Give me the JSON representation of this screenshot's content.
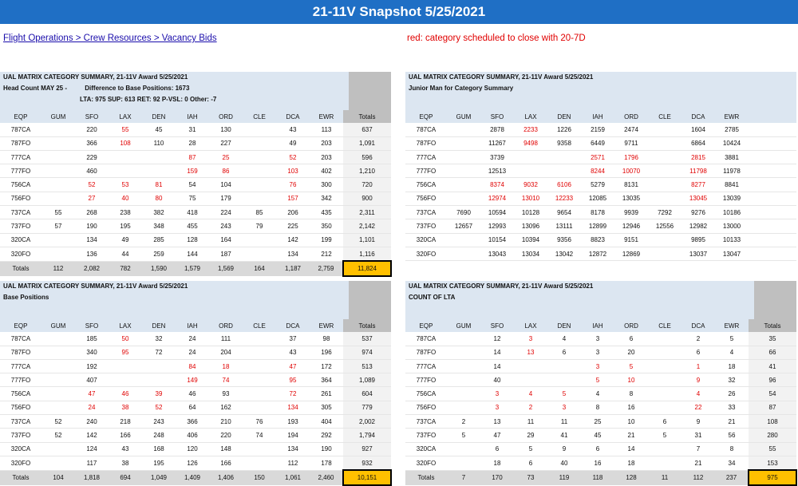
{
  "title": "21-11V Snapshot 5/25/2021",
  "breadcrumb": "Flight Operations > Crew Resources > Vacancy Bids",
  "note": "red: category scheduled to close with 20-7D",
  "colors": {
    "banner": "#1f6fc5",
    "red": "#e00000",
    "header_bg": "#dce6f1",
    "grand_total": "#ffc000"
  },
  "columns": [
    "EQP",
    "GUM",
    "SFO",
    "LAX",
    "DEN",
    "IAH",
    "ORD",
    "CLE",
    "DCA",
    "EWR",
    "Totals"
  ],
  "panels": {
    "headcount": {
      "title": "UAL MATRIX CATEGORY SUMMARY, 21-11V Award 5/25/2021",
      "subtitle": "Head Count MAY 25 -",
      "diff": "Difference to Base Positions: 1673",
      "stats": "LTA: 975  SUP: 613  RET: 92  P-VSL: 0 Other: -7",
      "rows": [
        {
          "eqp": "787CA",
          "cells": [
            "",
            "220",
            "55",
            "45",
            "31",
            "130",
            "",
            "43",
            "113"
          ],
          "red": [
            2
          ],
          "total": "637"
        },
        {
          "eqp": "787FO",
          "cells": [
            "",
            "366",
            "108",
            "110",
            "28",
            "227",
            "",
            "49",
            "203"
          ],
          "red": [
            2
          ],
          "total": "1,091"
        },
        {
          "eqp": "777CA",
          "cells": [
            "",
            "229",
            "",
            "",
            "87",
            "25",
            "",
            "52",
            "203"
          ],
          "red": [
            4,
            5,
            7
          ],
          "total": "596"
        },
        {
          "eqp": "777FO",
          "cells": [
            "",
            "460",
            "",
            "",
            "159",
            "86",
            "",
            "103",
            "402"
          ],
          "red": [
            4,
            5,
            7
          ],
          "total": "1,210"
        },
        {
          "eqp": "756CA",
          "cells": [
            "",
            "52",
            "53",
            "81",
            "54",
            "104",
            "",
            "76",
            "300"
          ],
          "red": [
            1,
            2,
            3,
            7
          ],
          "total": "720"
        },
        {
          "eqp": "756FO",
          "cells": [
            "",
            "27",
            "40",
            "80",
            "75",
            "179",
            "",
            "157",
            "342"
          ],
          "red": [
            1,
            2,
            3,
            7
          ],
          "total": "900"
        },
        {
          "eqp": "737CA",
          "cells": [
            "55",
            "268",
            "238",
            "382",
            "418",
            "224",
            "85",
            "206",
            "435"
          ],
          "red": [],
          "total": "2,311"
        },
        {
          "eqp": "737FO",
          "cells": [
            "57",
            "190",
            "195",
            "348",
            "455",
            "243",
            "79",
            "225",
            "350"
          ],
          "red": [],
          "total": "2,142"
        },
        {
          "eqp": "320CA",
          "cells": [
            "",
            "134",
            "49",
            "285",
            "128",
            "164",
            "",
            "142",
            "199"
          ],
          "red": [],
          "total": "1,101"
        },
        {
          "eqp": "320FO",
          "cells": [
            "",
            "136",
            "44",
            "259",
            "144",
            "187",
            "",
            "134",
            "212"
          ],
          "red": [],
          "total": "1,116"
        }
      ],
      "totals": {
        "label": "Totals",
        "cells": [
          "112",
          "2,082",
          "782",
          "1,590",
          "1,579",
          "1,569",
          "164",
          "1,187",
          "2,759"
        ],
        "grand": "11,824"
      }
    },
    "junior": {
      "title": "UAL MATRIX CATEGORY SUMMARY, 21-11V Award 5/25/2021",
      "subtitle": "Junior Man for Category Summary",
      "rows": [
        {
          "eqp": "787CA",
          "cells": [
            "",
            "2878",
            "2233",
            "1226",
            "2159",
            "2474",
            "",
            "1604",
            "2785"
          ],
          "red": [
            2
          ]
        },
        {
          "eqp": "787FO",
          "cells": [
            "",
            "11267",
            "9498",
            "9358",
            "6449",
            "9711",
            "",
            "6864",
            "10424"
          ],
          "red": [
            2
          ]
        },
        {
          "eqp": "777CA",
          "cells": [
            "",
            "3739",
            "",
            "",
            "2571",
            "1796",
            "",
            "2815",
            "3881"
          ],
          "red": [
            4,
            5,
            7
          ]
        },
        {
          "eqp": "777FO",
          "cells": [
            "",
            "12513",
            "",
            "",
            "8244",
            "10070",
            "",
            "11798",
            "11978"
          ],
          "red": [
            4,
            5,
            7
          ]
        },
        {
          "eqp": "756CA",
          "cells": [
            "",
            "8374",
            "9032",
            "6106",
            "5279",
            "8131",
            "",
            "8277",
            "8841"
          ],
          "red": [
            1,
            2,
            3,
            7
          ]
        },
        {
          "eqp": "756FO",
          "cells": [
            "",
            "12974",
            "13010",
            "12233",
            "12085",
            "13035",
            "",
            "13045",
            "13039"
          ],
          "red": [
            1,
            2,
            3,
            7
          ]
        },
        {
          "eqp": "737CA",
          "cells": [
            "7690",
            "10594",
            "10128",
            "9654",
            "8178",
            "9939",
            "7292",
            "9276",
            "10186"
          ],
          "red": []
        },
        {
          "eqp": "737FO",
          "cells": [
            "12657",
            "12993",
            "13096",
            "13111",
            "12899",
            "12946",
            "12556",
            "12982",
            "13000"
          ],
          "red": []
        },
        {
          "eqp": "320CA",
          "cells": [
            "",
            "10154",
            "10394",
            "9356",
            "8823",
            "9151",
            "",
            "9895",
            "10133"
          ],
          "red": []
        },
        {
          "eqp": "320FO",
          "cells": [
            "",
            "13043",
            "13034",
            "13042",
            "12872",
            "12869",
            "",
            "13037",
            "13047"
          ],
          "red": []
        }
      ]
    },
    "base": {
      "title": "UAL MATRIX CATEGORY SUMMARY, 21-11V Award 5/25/2021",
      "subtitle": "Base Positions",
      "rows": [
        {
          "eqp": "787CA",
          "cells": [
            "",
            "185",
            "50",
            "32",
            "24",
            "111",
            "",
            "37",
            "98"
          ],
          "red": [
            2
          ],
          "total": "537"
        },
        {
          "eqp": "787FO",
          "cells": [
            "",
            "340",
            "95",
            "72",
            "24",
            "204",
            "",
            "43",
            "196"
          ],
          "red": [
            2
          ],
          "total": "974"
        },
        {
          "eqp": "777CA",
          "cells": [
            "",
            "192",
            "",
            "",
            "84",
            "18",
            "",
            "47",
            "172"
          ],
          "red": [
            4,
            5,
            7
          ],
          "total": "513"
        },
        {
          "eqp": "777FO",
          "cells": [
            "",
            "407",
            "",
            "",
            "149",
            "74",
            "",
            "95",
            "364"
          ],
          "red": [
            4,
            5,
            7
          ],
          "total": "1,089"
        },
        {
          "eqp": "756CA",
          "cells": [
            "",
            "47",
            "46",
            "39",
            "46",
            "93",
            "",
            "72",
            "261"
          ],
          "red": [
            1,
            2,
            3,
            7
          ],
          "total": "604"
        },
        {
          "eqp": "756FO",
          "cells": [
            "",
            "24",
            "38",
            "52",
            "64",
            "162",
            "",
            "134",
            "305"
          ],
          "red": [
            1,
            2,
            3,
            7
          ],
          "total": "779"
        },
        {
          "eqp": "737CA",
          "cells": [
            "52",
            "240",
            "218",
            "243",
            "366",
            "210",
            "76",
            "193",
            "404"
          ],
          "red": [],
          "total": "2,002"
        },
        {
          "eqp": "737FO",
          "cells": [
            "52",
            "142",
            "166",
            "248",
            "406",
            "220",
            "74",
            "194",
            "292"
          ],
          "red": [],
          "total": "1,794"
        },
        {
          "eqp": "320CA",
          "cells": [
            "",
            "124",
            "43",
            "168",
            "120",
            "148",
            "",
            "134",
            "190"
          ],
          "red": [],
          "total": "927"
        },
        {
          "eqp": "320FO",
          "cells": [
            "",
            "117",
            "38",
            "195",
            "126",
            "166",
            "",
            "112",
            "178"
          ],
          "red": [],
          "total": "932"
        }
      ],
      "totals": {
        "label": "Totals",
        "cells": [
          "104",
          "1,818",
          "694",
          "1,049",
          "1,409",
          "1,406",
          "150",
          "1,061",
          "2,460"
        ],
        "grand": "10,151"
      }
    },
    "lta": {
      "title": "UAL MATRIX CATEGORY SUMMARY, 21-11V Award 5/25/2021",
      "subtitle": "COUNT OF LTA",
      "rows": [
        {
          "eqp": "787CA",
          "cells": [
            "",
            "12",
            "3",
            "4",
            "3",
            "6",
            "",
            "2",
            "5"
          ],
          "red": [
            2
          ],
          "total": "35"
        },
        {
          "eqp": "787FO",
          "cells": [
            "",
            "14",
            "13",
            "6",
            "3",
            "20",
            "",
            "6",
            "4"
          ],
          "red": [
            2
          ],
          "total": "66"
        },
        {
          "eqp": "777CA",
          "cells": [
            "",
            "14",
            "",
            "",
            "3",
            "5",
            "",
            "1",
            "18"
          ],
          "red": [
            4,
            5,
            7
          ],
          "total": "41"
        },
        {
          "eqp": "777FO",
          "cells": [
            "",
            "40",
            "",
            "",
            "5",
            "10",
            "",
            "9",
            "32"
          ],
          "red": [
            4,
            5,
            7
          ],
          "total": "96"
        },
        {
          "eqp": "756CA",
          "cells": [
            "",
            "3",
            "4",
            "5",
            "4",
            "8",
            "",
            "4",
            "26"
          ],
          "red": [
            1,
            2,
            3,
            7
          ],
          "total": "54"
        },
        {
          "eqp": "756FO",
          "cells": [
            "",
            "3",
            "2",
            "3",
            "8",
            "16",
            "",
            "22",
            "33"
          ],
          "red": [
            1,
            2,
            3,
            7
          ],
          "total": "87"
        },
        {
          "eqp": "737CA",
          "cells": [
            "2",
            "13",
            "11",
            "11",
            "25",
            "10",
            "6",
            "9",
            "21"
          ],
          "red": [],
          "total": "108"
        },
        {
          "eqp": "737FO",
          "cells": [
            "5",
            "47",
            "29",
            "41",
            "45",
            "21",
            "5",
            "31",
            "56"
          ],
          "red": [],
          "total": "280"
        },
        {
          "eqp": "320CA",
          "cells": [
            "",
            "6",
            "5",
            "9",
            "6",
            "14",
            "",
            "7",
            "8"
          ],
          "red": [],
          "total": "55"
        },
        {
          "eqp": "320FO",
          "cells": [
            "",
            "18",
            "6",
            "40",
            "16",
            "18",
            "",
            "21",
            "34"
          ],
          "red": [],
          "total": "153"
        }
      ],
      "totals": {
        "label": "Totals",
        "cells": [
          "7",
          "170",
          "73",
          "119",
          "118",
          "128",
          "11",
          "112",
          "237"
        ],
        "grand": "975"
      }
    }
  }
}
